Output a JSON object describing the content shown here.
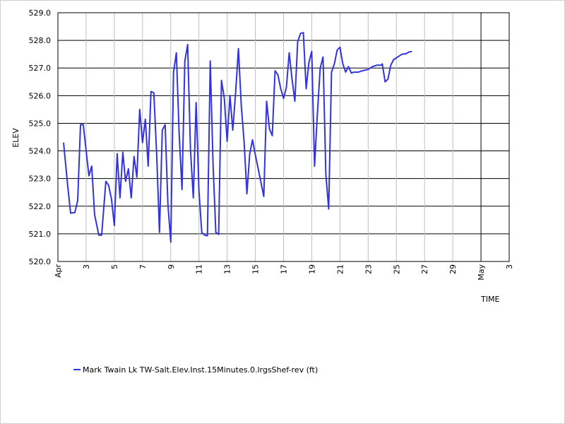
{
  "chart_data": {
    "type": "line",
    "xlabel": "TIME",
    "ylabel": "ELEV",
    "ylim": [
      520,
      529
    ],
    "yticks": [
      "520.0",
      "521.0",
      "522.0",
      "523.0",
      "524.0",
      "525.0",
      "526.0",
      "527.0",
      "528.0",
      "529.0"
    ],
    "xlim": [
      0,
      32
    ],
    "xticks": [
      {
        "x": 0,
        "label": "Apr"
      },
      {
        "x": 2,
        "label": "3"
      },
      {
        "x": 4,
        "label": "5"
      },
      {
        "x": 6,
        "label": "7"
      },
      {
        "x": 8,
        "label": "9"
      },
      {
        "x": 10,
        "label": "11"
      },
      {
        "x": 12,
        "label": "13"
      },
      {
        "x": 14,
        "label": "15"
      },
      {
        "x": 16,
        "label": "17"
      },
      {
        "x": 18,
        "label": "19"
      },
      {
        "x": 20,
        "label": "21"
      },
      {
        "x": 22,
        "label": "23"
      },
      {
        "x": 24,
        "label": "25"
      },
      {
        "x": 26,
        "label": "27"
      },
      {
        "x": 28,
        "label": "29"
      },
      {
        "x": 30,
        "label": "May"
      },
      {
        "x": 32,
        "label": "3"
      }
    ],
    "grid": true,
    "legend_position": "bottom-left",
    "series": [
      {
        "name": "Mark Twain Lk TW-Salt.Elev.Inst.15Minutes.0.lrgsShef-rev (ft)",
        "color": "#3333dd",
        "points": [
          [
            0.4,
            524.3
          ],
          [
            0.7,
            522.7
          ],
          [
            0.9,
            521.75
          ],
          [
            1.2,
            521.77
          ],
          [
            1.4,
            522.2
          ],
          [
            1.6,
            524.95
          ],
          [
            1.8,
            524.95
          ],
          [
            2.2,
            523.1
          ],
          [
            2.4,
            523.45
          ],
          [
            2.6,
            521.7
          ],
          [
            2.9,
            520.95
          ],
          [
            3.1,
            520.95
          ],
          [
            3.4,
            522.9
          ],
          [
            3.6,
            522.75
          ],
          [
            3.8,
            522.25
          ],
          [
            4.0,
            521.3
          ],
          [
            4.2,
            523.9
          ],
          [
            4.4,
            522.3
          ],
          [
            4.6,
            523.95
          ],
          [
            4.8,
            522.9
          ],
          [
            5.0,
            523.35
          ],
          [
            5.2,
            522.3
          ],
          [
            5.4,
            523.8
          ],
          [
            5.6,
            523.05
          ],
          [
            5.8,
            525.5
          ],
          [
            6.0,
            524.3
          ],
          [
            6.2,
            525.15
          ],
          [
            6.4,
            523.45
          ],
          [
            6.6,
            526.15
          ],
          [
            6.8,
            526.1
          ],
          [
            7.0,
            523.9
          ],
          [
            7.2,
            521.05
          ],
          [
            7.4,
            524.75
          ],
          [
            7.6,
            524.95
          ],
          [
            7.8,
            522.05
          ],
          [
            8.0,
            520.7
          ],
          [
            8.2,
            526.85
          ],
          [
            8.4,
            527.55
          ],
          [
            8.6,
            524.6
          ],
          [
            8.8,
            522.6
          ],
          [
            9.0,
            527.25
          ],
          [
            9.2,
            527.85
          ],
          [
            9.4,
            524.05
          ],
          [
            9.6,
            522.3
          ],
          [
            9.8,
            525.75
          ],
          [
            10.0,
            522.55
          ],
          [
            10.2,
            521.05
          ],
          [
            10.4,
            520.95
          ],
          [
            10.6,
            520.93
          ],
          [
            10.8,
            527.25
          ],
          [
            11.0,
            523.5
          ],
          [
            11.2,
            521.05
          ],
          [
            11.4,
            520.98
          ],
          [
            11.6,
            526.55
          ],
          [
            11.8,
            525.9
          ],
          [
            12.0,
            524.35
          ],
          [
            12.2,
            526.0
          ],
          [
            12.4,
            524.75
          ],
          [
            12.6,
            526.1
          ],
          [
            12.8,
            527.7
          ],
          [
            13.0,
            525.65
          ],
          [
            13.2,
            524.35
          ],
          [
            13.4,
            522.45
          ],
          [
            13.6,
            523.9
          ],
          [
            13.8,
            524.4
          ],
          [
            14.0,
            523.85
          ],
          [
            14.2,
            523.35
          ],
          [
            14.4,
            522.85
          ],
          [
            14.6,
            522.35
          ],
          [
            14.8,
            525.8
          ],
          [
            15.0,
            524.8
          ],
          [
            15.2,
            524.55
          ],
          [
            15.4,
            526.9
          ],
          [
            15.6,
            526.75
          ],
          [
            15.8,
            526.25
          ],
          [
            16.0,
            525.9
          ],
          [
            16.2,
            526.3
          ],
          [
            16.4,
            527.55
          ],
          [
            16.6,
            526.6
          ],
          [
            16.8,
            525.8
          ],
          [
            17.0,
            527.95
          ],
          [
            17.2,
            528.25
          ],
          [
            17.4,
            528.28
          ],
          [
            17.6,
            526.25
          ],
          [
            17.8,
            527.2
          ],
          [
            18.0,
            527.6
          ],
          [
            18.2,
            523.45
          ],
          [
            18.4,
            525.35
          ],
          [
            18.6,
            527.0
          ],
          [
            18.8,
            527.4
          ],
          [
            19.0,
            523.15
          ],
          [
            19.2,
            521.9
          ],
          [
            19.4,
            526.85
          ],
          [
            19.6,
            527.15
          ],
          [
            19.8,
            527.65
          ],
          [
            20.0,
            527.75
          ],
          [
            20.2,
            527.15
          ],
          [
            20.4,
            526.85
          ],
          [
            20.6,
            527.05
          ],
          [
            20.8,
            526.82
          ],
          [
            21.0,
            526.85
          ],
          [
            21.3,
            526.85
          ],
          [
            21.6,
            526.9
          ],
          [
            22.0,
            526.95
          ],
          [
            22.3,
            527.05
          ],
          [
            22.6,
            527.1
          ],
          [
            22.9,
            527.1
          ],
          [
            23.0,
            527.15
          ],
          [
            23.2,
            526.5
          ],
          [
            23.4,
            526.6
          ],
          [
            23.6,
            527.1
          ],
          [
            23.8,
            527.3
          ],
          [
            24.1,
            527.4
          ],
          [
            24.4,
            527.5
          ],
          [
            24.7,
            527.52
          ],
          [
            24.9,
            527.58
          ],
          [
            25.1,
            527.6
          ]
        ]
      }
    ]
  }
}
